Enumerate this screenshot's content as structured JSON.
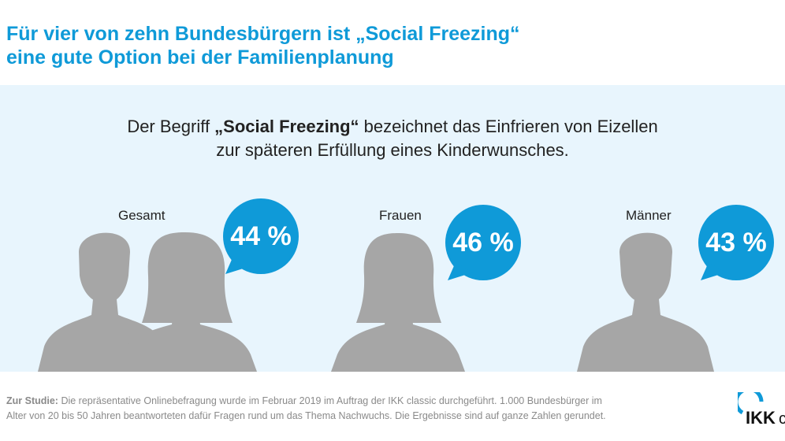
{
  "title": {
    "line1": "Für vier von zehn Bundesbürgern ist „Social Freezing“",
    "line2": "eine gute Option bei der Familienplanung"
  },
  "definition": {
    "pre": "Der Begriff ",
    "term": "„Social Freezing“",
    "post": " bezeichnet das Einfrieren von Eizellen",
    "line2": "zur späteren Erfüllung eines Kinderwunsches."
  },
  "groups": [
    {
      "label": "Gesamt",
      "value": "44 %"
    },
    {
      "label": "Frauen",
      "value": "46 %"
    },
    {
      "label": "Männer",
      "value": "43 %"
    }
  ],
  "footer": {
    "label": "Zur Studie:",
    "text1": " Die repräsentative Onlinebefragung wurde im Februar 2019 im Auftrag der IKK classic durchgeführt. 1.000 Bundesbürger im",
    "text2": "Alter von 20 bis 50 Jahren beantworteten dafür Fragen rund um das Thema Nachwuchs. Die Ergebnisse sind auf ganze Zahlen gerundet."
  },
  "logo": {
    "text": "IKK c"
  },
  "colors": {
    "accent": "#0f9ad8",
    "panel": "#e8f5fd",
    "silhouette": "#a6a6a6"
  }
}
